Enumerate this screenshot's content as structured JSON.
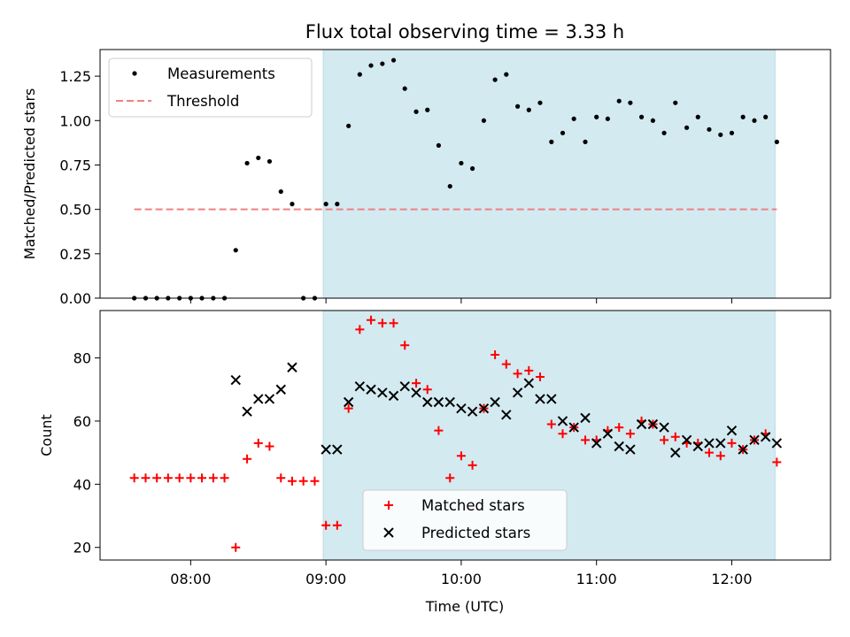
{
  "chart_data": [
    {
      "type": "scatter",
      "panel": "top",
      "title": "Flux total observing time = 3.33 h",
      "xlabel": "",
      "ylabel": "Matched/Predicted stars",
      "xlim": [
        7.33,
        12.73
      ],
      "ylim": [
        0.0,
        1.4
      ],
      "yticks": [
        0.0,
        0.25,
        0.5,
        0.75,
        1.0,
        1.25
      ],
      "ytick_labels": [
        "0.00",
        "0.25",
        "0.50",
        "0.75",
        "1.00",
        "1.25"
      ],
      "shaded_region": {
        "x_start": 8.98,
        "x_end": 12.32,
        "color": "#d3eaf1"
      },
      "legend_position": "upper-left",
      "series": [
        {
          "name": "Measurements",
          "marker": "dot",
          "color": "#000000",
          "x": [
            7.583,
            7.667,
            7.75,
            7.833,
            7.917,
            8.0,
            8.083,
            8.167,
            8.25,
            8.333,
            8.417,
            8.5,
            8.583,
            8.667,
            8.75,
            8.833,
            8.917,
            9.0,
            9.083,
            9.167,
            9.25,
            9.333,
            9.417,
            9.5,
            9.583,
            9.667,
            9.75,
            9.833,
            9.917,
            10.0,
            10.083,
            10.167,
            10.25,
            10.333,
            10.417,
            10.5,
            10.583,
            10.667,
            10.75,
            10.833,
            10.917,
            11.0,
            11.083,
            11.167,
            11.25,
            11.333,
            11.417,
            11.5,
            11.583,
            11.667,
            11.75,
            11.833,
            11.917,
            12.0,
            12.083,
            12.167,
            12.25,
            12.333
          ],
          "y": [
            0.0,
            0.0,
            0.0,
            0.0,
            0.0,
            0.0,
            0.0,
            0.0,
            0.0,
            0.27,
            0.76,
            0.79,
            0.77,
            0.6,
            0.53,
            0.0,
            0.0,
            0.53,
            0.53,
            0.97,
            1.26,
            1.31,
            1.32,
            1.34,
            1.18,
            1.05,
            1.06,
            0.86,
            0.63,
            0.76,
            0.73,
            1.0,
            1.23,
            1.26,
            1.08,
            1.06,
            1.1,
            0.88,
            0.93,
            1.01,
            0.88,
            1.02,
            1.01,
            1.11,
            1.1,
            1.02,
            1.0,
            0.93,
            1.1,
            0.96,
            1.02,
            0.95,
            0.92,
            0.93,
            1.02,
            1.0,
            1.02,
            0.88
          ]
        },
        {
          "name": "Threshold",
          "marker": "dashed-line",
          "color": "#f08080",
          "x": [
            7.583,
            12.333
          ],
          "y": [
            0.5,
            0.5
          ]
        }
      ]
    },
    {
      "type": "scatter",
      "panel": "bottom",
      "title": "",
      "xlabel": "Time (UTC)",
      "ylabel": "Count",
      "xlim": [
        7.33,
        12.73
      ],
      "ylim": [
        16,
        95
      ],
      "yticks": [
        20,
        40,
        60,
        80
      ],
      "ytick_labels": [
        "20",
        "40",
        "60",
        "80"
      ],
      "xticks": [
        8,
        9,
        10,
        11,
        12
      ],
      "xtick_labels": [
        "08:00",
        "09:00",
        "10:00",
        "11:00",
        "12:00"
      ],
      "shaded_region": {
        "x_start": 8.98,
        "x_end": 12.32,
        "color": "#d3eaf1"
      },
      "legend_position": "lower-center",
      "series": [
        {
          "name": "Matched stars",
          "marker": "plus",
          "color": "#ff0000",
          "x": [
            7.583,
            7.667,
            7.75,
            7.833,
            7.917,
            8.0,
            8.083,
            8.167,
            8.25,
            8.333,
            8.417,
            8.5,
            8.583,
            8.667,
            8.75,
            8.833,
            8.917,
            9.0,
            9.083,
            9.167,
            9.25,
            9.333,
            9.417,
            9.5,
            9.583,
            9.667,
            9.75,
            9.833,
            9.917,
            10.0,
            10.083,
            10.167,
            10.25,
            10.333,
            10.417,
            10.5,
            10.583,
            10.667,
            10.75,
            10.833,
            10.917,
            11.0,
            11.083,
            11.167,
            11.25,
            11.333,
            11.417,
            11.5,
            11.583,
            11.667,
            11.75,
            11.833,
            11.917,
            12.0,
            12.083,
            12.167,
            12.25,
            12.333
          ],
          "y": [
            42,
            42,
            42,
            42,
            42,
            42,
            42,
            42,
            42,
            20,
            48,
            53,
            52,
            42,
            41,
            41,
            41,
            27,
            27,
            64,
            89,
            92,
            91,
            91,
            84,
            72,
            70,
            57,
            42,
            49,
            46,
            64,
            81,
            78,
            75,
            76,
            74,
            59,
            56,
            58,
            54,
            54,
            57,
            58,
            56,
            60,
            59,
            54,
            55,
            53,
            53,
            50,
            49,
            53,
            51,
            54,
            56,
            47
          ]
        },
        {
          "name": "Predicted stars",
          "marker": "x",
          "color": "#000000",
          "x": [
            8.333,
            8.417,
            8.5,
            8.583,
            8.667,
            8.75,
            9.0,
            9.083,
            9.167,
            9.25,
            9.333,
            9.417,
            9.5,
            9.583,
            9.667,
            9.75,
            9.833,
            9.917,
            10.0,
            10.083,
            10.167,
            10.25,
            10.333,
            10.417,
            10.5,
            10.583,
            10.667,
            10.75,
            10.833,
            10.917,
            11.0,
            11.083,
            11.167,
            11.25,
            11.333,
            11.417,
            11.5,
            11.583,
            11.667,
            11.75,
            11.833,
            11.917,
            12.0,
            12.083,
            12.167,
            12.25,
            12.333
          ],
          "y": [
            73,
            63,
            67,
            67,
            70,
            77,
            51,
            51,
            66,
            71,
            70,
            69,
            68,
            71,
            69,
            66,
            66,
            66,
            64,
            63,
            64,
            66,
            62,
            69,
            72,
            67,
            67,
            60,
            58,
            61,
            53,
            56,
            52,
            51,
            59,
            59,
            58,
            50,
            54,
            52,
            53,
            53,
            57,
            51,
            54,
            55,
            53
          ]
        }
      ]
    }
  ]
}
